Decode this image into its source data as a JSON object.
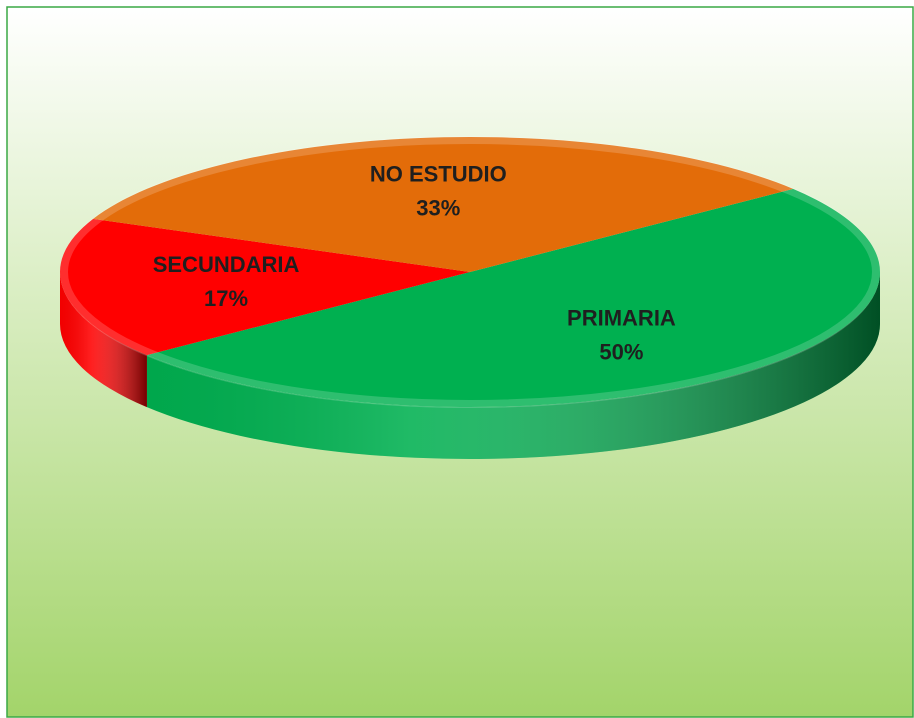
{
  "chart_data": {
    "type": "pie",
    "categories": [
      "PRIMARIA",
      "SECUNDARIA",
      "NO ESTUDIO"
    ],
    "values": [
      50,
      17,
      33
    ],
    "value_labels": [
      "50%",
      "17%",
      "33%"
    ],
    "colors": [
      "#00b050",
      "#ff0000",
      "#e36c09"
    ]
  }
}
